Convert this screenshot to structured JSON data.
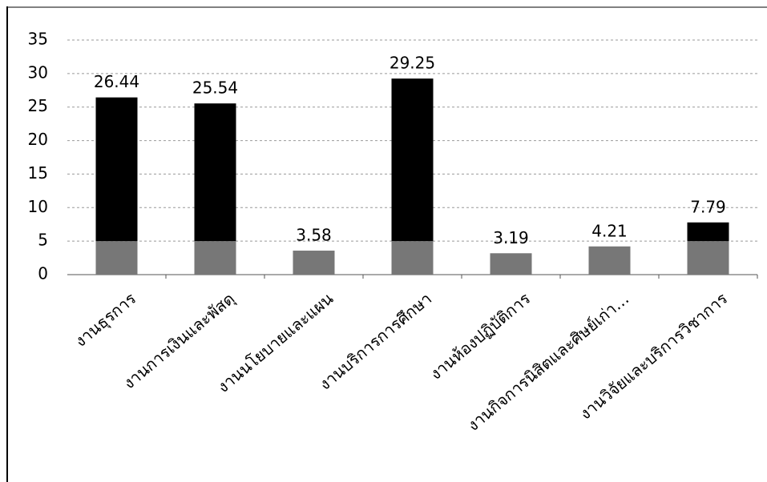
{
  "chart_data": {
    "type": "bar",
    "categories": [
      "งานธุรการ",
      "งานการเงินและพัสดุ",
      "งานนโยบายและแผน",
      "งานบริการการศึกษา",
      "งานห้องปฏิบัติการ",
      "งานกิจการนิสิตและศิษย์เก่า…",
      "งานวิจัยและบริการวิชาการ"
    ],
    "values": [
      26.44,
      25.54,
      3.58,
      29.25,
      3.19,
      4.21,
      7.79
    ],
    "color": "#000000",
    "lower_color": "#777777",
    "color_split": 5,
    "ylim": [
      0,
      35
    ],
    "yticks": [
      0,
      5,
      10,
      15,
      20,
      25,
      30,
      35
    ],
    "grid": true
  }
}
